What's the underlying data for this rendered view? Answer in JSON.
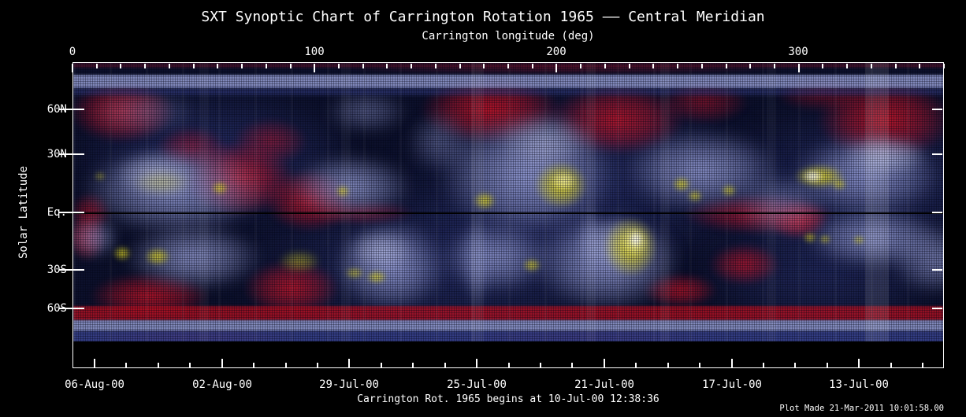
{
  "title": "SXT Synoptic Chart of Carrington Rotation 1965 —— Central Meridian",
  "caption": "Carrington Rot. 1965 begins at 10-Jul-00 12:38:36",
  "plot_made": "Plot Made 21-Mar-2011 10:01:58.00",
  "axes": {
    "x_top": {
      "label": "Carrington longitude (deg)",
      "tick_labels": [
        "0",
        "100",
        "200",
        "300"
      ]
    },
    "x_bottom": {
      "date_labels": [
        "06-Aug-00",
        "02-Aug-00",
        "29-Jul-00",
        "25-Jul-00",
        "21-Jul-00",
        "17-Jul-00",
        "13-Jul-00"
      ]
    },
    "y_left": {
      "label": "Solar Latitude",
      "tick_labels": [
        "60N",
        "30N",
        "Eq.",
        "30S",
        "60S"
      ]
    }
  },
  "chart_data": {
    "type": "heatmap",
    "title": "SXT Synoptic Chart of Carrington Rotation 1965 —— Central Meridian",
    "xlabel": "Carrington longitude (deg)",
    "ylabel": "Solar Latitude",
    "xlim": [
      0,
      360
    ],
    "x_ticks": [
      0,
      100,
      200,
      300
    ],
    "y_tick_labels": [
      "60N",
      "30N",
      "Eq.",
      "30S",
      "60S"
    ],
    "y_scale": "sine-latitude",
    "date_axis_ticks": [
      "06-Aug-00",
      "02-Aug-00",
      "29-Jul-00",
      "25-Jul-00",
      "21-Jul-00",
      "17-Jul-00",
      "13-Jul-00"
    ],
    "grid": false,
    "legend": false,
    "colormap_note": "Dark navy background with lavender/blue coronal clouds, crimson mottled noise bands near poles and data gaps, yellow bright X-ray active regions with white cores; thin black line marks the equator.",
    "annotations": [
      "Carrington Rot. 1965 begins at 10-Jul-00 12:38:36",
      "Plot Made 21-Mar-2011 10:01:58.00"
    ],
    "bright_active_regions": [
      {
        "carrington_lon": 61,
        "lat": "13N",
        "intensity": "moderate"
      },
      {
        "carrington_lon": 112,
        "lat": "11N",
        "intensity": "moderate"
      },
      {
        "carrington_lon": 170,
        "lat": "7N",
        "intensity": "moderate"
      },
      {
        "carrington_lon": 202,
        "lat": "14N",
        "intensity": "very bright"
      },
      {
        "carrington_lon": 252,
        "lat": "15N",
        "intensity": "moderate"
      },
      {
        "carrington_lon": 271,
        "lat": "12N",
        "intensity": "moderate"
      },
      {
        "carrington_lon": 308,
        "lat": "19N",
        "intensity": "very bright, white core"
      },
      {
        "carrington_lon": 20,
        "lat": "19S",
        "intensity": "bright"
      },
      {
        "carrington_lon": 126,
        "lat": "32S",
        "intensity": "moderate"
      },
      {
        "carrington_lon": 190,
        "lat": "26S",
        "intensity": "moderate"
      },
      {
        "carrington_lon": 230,
        "lat": "16S",
        "intensity": "very bright, white core"
      },
      {
        "carrington_lon": 305,
        "lat": "12S",
        "intensity": "moderate"
      }
    ]
  },
  "figure": {
    "palette": {
      "base": "#0c102b",
      "blue": "#3a4490",
      "lav": "#9ea6df",
      "lav2": "#c6cbf0",
      "red": "#d01425",
      "redband": "#c01020",
      "yellow": "#d9d021",
      "bright": "#f4f0a0",
      "white": "#ffffff",
      "equator": "#000000"
    },
    "underlay": [
      [
        180,
        120,
        190,
        95,
        "blue",
        0.55,
        12
      ],
      [
        650,
        150,
        260,
        125,
        "blue",
        0.5,
        14
      ],
      [
        1000,
        150,
        210,
        105,
        "blue",
        0.5,
        14
      ],
      [
        480,
        255,
        300,
        105,
        "blue",
        0.5,
        14
      ],
      [
        950,
        265,
        170,
        85,
        "blue",
        0.45,
        12
      ]
    ],
    "red_patches": [
      [
        62,
        62,
        68,
        40,
        "red",
        0.8,
        4
      ],
      [
        150,
        108,
        45,
        28,
        "red",
        0.5,
        4
      ],
      [
        210,
        147,
        72,
        48,
        "red",
        0.85,
        4
      ],
      [
        300,
        175,
        58,
        40,
        "red",
        0.8,
        4
      ],
      [
        250,
        100,
        48,
        30,
        "red",
        0.5,
        4
      ],
      [
        530,
        60,
        92,
        44,
        "red",
        0.85,
        4
      ],
      [
        690,
        72,
        88,
        46,
        "red",
        0.8,
        4
      ],
      [
        800,
        50,
        58,
        28,
        "red",
        0.5,
        4
      ],
      [
        1030,
        72,
        88,
        52,
        "red",
        0.85,
        4
      ],
      [
        950,
        40,
        60,
        22,
        "red",
        0.4,
        4
      ],
      [
        870,
        192,
        98,
        26,
        "red",
        0.7,
        4
      ],
      [
        920,
        200,
        38,
        24,
        "red",
        0.85,
        4
      ],
      [
        367,
        190,
        68,
        16,
        "red",
        0.45,
        4
      ],
      [
        22,
        190,
        26,
        26,
        "red",
        0.6,
        4
      ],
      [
        17,
        222,
        24,
        30,
        "red",
        0.75,
        4
      ],
      [
        97,
        296,
        78,
        30,
        "red",
        0.8,
        4
      ],
      [
        277,
        286,
        62,
        36,
        "red",
        0.8,
        4
      ],
      [
        770,
        289,
        48,
        22,
        "red",
        0.75,
        4
      ],
      [
        852,
        256,
        46,
        27,
        "red",
        0.7,
        4
      ],
      [
        620,
        8,
        300,
        6,
        "red",
        0.3,
        2
      ],
      [
        150,
        348,
        150,
        8,
        "red",
        0.5,
        2
      ],
      [
        650,
        348,
        180,
        8,
        "red",
        0.35,
        2
      ]
    ],
    "clouds": [
      [
        127,
        162,
        122,
        60,
        "lav",
        0.85,
        8
      ],
      [
        107,
        142,
        58,
        30,
        "lav2",
        0.7,
        6
      ],
      [
        352,
        157,
        80,
        42,
        "lav",
        0.85,
        8
      ],
      [
        372,
        62,
        54,
        28,
        "lav",
        0.5,
        8
      ],
      [
        577,
        142,
        118,
        80,
        "lav",
        0.9,
        8
      ],
      [
        600,
        100,
        62,
        36,
        "lav2",
        0.6,
        8
      ],
      [
        797,
        137,
        102,
        54,
        "lav",
        0.85,
        8
      ],
      [
        900,
        180,
        62,
        42,
        "lav",
        0.55,
        8
      ],
      [
        1007,
        142,
        98,
        54,
        "lav",
        0.85,
        8
      ],
      [
        1030,
        118,
        56,
        26,
        "lav2",
        0.7,
        6
      ],
      [
        152,
        247,
        90,
        44,
        "lav",
        0.85,
        8
      ],
      [
        27,
        222,
        32,
        28,
        "lav",
        0.7,
        7
      ],
      [
        402,
        257,
        74,
        60,
        "lav",
        0.9,
        8
      ],
      [
        390,
        238,
        42,
        26,
        "lav2",
        0.6,
        6
      ],
      [
        537,
        247,
        72,
        46,
        "lav",
        0.8,
        8
      ],
      [
        677,
        252,
        98,
        64,
        "lav",
        0.9,
        8
      ],
      [
        690,
        228,
        52,
        32,
        "lav2",
        0.6,
        6
      ],
      [
        1017,
        222,
        90,
        40,
        "lav",
        0.85,
        8
      ],
      [
        1095,
        250,
        60,
        45,
        "lav",
        0.7,
        8
      ],
      [
        512,
        252,
        17,
        64,
        "lav",
        0.55,
        6
      ],
      [
        655,
        225,
        15,
        50,
        "lav",
        0.45,
        6
      ],
      [
        90,
        62,
        72,
        30,
        "lav",
        0.4,
        8
      ],
      [
        465,
        100,
        42,
        40,
        "lav",
        0.45,
        8
      ]
    ],
    "yellow_regions": [
      [
        112,
        152,
        38,
        17,
        "yellow",
        0.35,
        5
      ],
      [
        186,
        159,
        11,
        9,
        "yellow",
        0.9,
        3
      ],
      [
        342,
        163,
        9,
        8,
        "yellow",
        0.9,
        3
      ],
      [
        522,
        175,
        15,
        12,
        "yellow",
        0.9,
        3
      ],
      [
        619,
        155,
        35,
        31,
        "yellow",
        0.95,
        3
      ],
      [
        622,
        150,
        17,
        13,
        "bright",
        0.9,
        2
      ],
      [
        772,
        154,
        12,
        10,
        "yellow",
        0.9,
        3
      ],
      [
        789,
        169,
        10,
        8,
        "yellow",
        0.85,
        3
      ],
      [
        832,
        162,
        10,
        8,
        "yellow",
        0.85,
        3
      ],
      [
        947,
        144,
        33,
        16,
        "yellow",
        0.95,
        3
      ],
      [
        939,
        144,
        14,
        9,
        "white",
        0.9,
        2
      ],
      [
        972,
        154,
        10,
        8,
        "yellow",
        0.8,
        3
      ],
      [
        34,
        144,
        8,
        6,
        "yellow",
        0.55,
        3
      ],
      [
        62,
        242,
        12,
        10,
        "yellow",
        0.9,
        3
      ],
      [
        107,
        246,
        17,
        12,
        "yellow",
        0.9,
        3
      ],
      [
        287,
        252,
        28,
        15,
        "yellow",
        0.55,
        4
      ],
      [
        357,
        267,
        13,
        8,
        "yellow",
        0.7,
        3
      ],
      [
        385,
        272,
        14,
        9,
        "yellow",
        0.85,
        3
      ],
      [
        582,
        257,
        12,
        9,
        "yellow",
        0.85,
        3
      ],
      [
        707,
        234,
        35,
        39,
        "yellow",
        0.95,
        3
      ],
      [
        712,
        227,
        18,
        20,
        "bright",
        0.95,
        2
      ],
      [
        714,
        224,
        9,
        11,
        "white",
        0.9,
        2
      ],
      [
        935,
        222,
        9,
        7,
        "yellow",
        0.85,
        3
      ],
      [
        954,
        224,
        8,
        6,
        "yellow",
        0.8,
        3
      ],
      [
        997,
        225,
        8,
        6,
        "yellow",
        0.8,
        3
      ]
    ],
    "bands": [
      [
        0,
        6,
        "red",
        0.25,
        1
      ],
      [
        15,
        17,
        "lav",
        0.8,
        1
      ],
      [
        32,
        9,
        "blue",
        0.5,
        2
      ],
      [
        309,
        18,
        "redband",
        0.75,
        1
      ],
      [
        327,
        14,
        "lav",
        0.8,
        1
      ],
      [
        341,
        15,
        "blue",
        0.85,
        1
      ]
    ],
    "seams": [
      [
        505,
        16,
        0.06
      ],
      [
        1005,
        30,
        0.1
      ],
      [
        651,
        12,
        0.05
      ],
      [
        745,
        12,
        0.05
      ],
      [
        160,
        12,
        0.04
      ],
      [
        340,
        12,
        0.04
      ],
      [
        880,
        12,
        0.04
      ]
    ]
  }
}
